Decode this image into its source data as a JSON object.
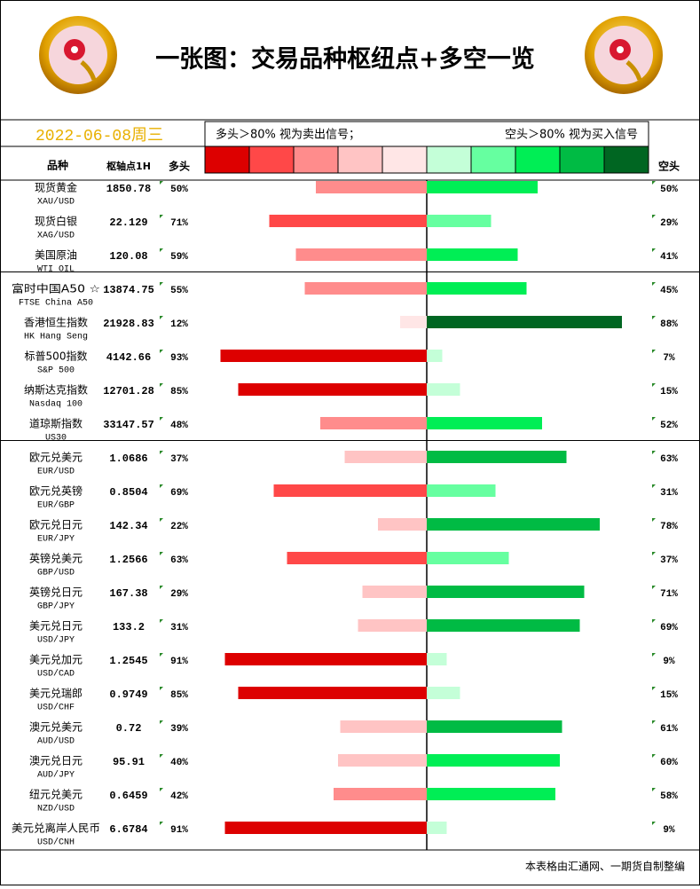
{
  "chart_data": {
    "type": "diverging-bar",
    "title": "一张图：交易品种枢纽点+多空一览",
    "date": "2022-06-08周三",
    "legend_left": "多头＞80% 视为卖出信号；",
    "legend_right": "空头＞80% 视为买入信号",
    "name_header": "品种",
    "pivot_header": "枢轴点1H",
    "footer": "本表格由汇通网、一期货自制整编",
    "xlim": [
      0,
      100
    ],
    "categories": [
      "现货黄金",
      "现货白银",
      "美国原油",
      "富时中国A50 ☆",
      "香港恒生指数",
      "标普500指数",
      "纳斯达克指数",
      "道琼斯指数",
      "欧元兑美元",
      "欧元兑英镑",
      "欧元兑日元",
      "英镑兑美元",
      "英镑兑日元",
      "美元兑日元",
      "美元兑加元",
      "美元兑瑞郎",
      "澳元兑美元",
      "澳元兑日元",
      "纽元兑美元",
      "美元兑离岸人民币"
    ],
    "codes": [
      "XAU/USD",
      "XAG/USD",
      "WTI OIL",
      "FTSE China A50",
      "HK Hang Seng",
      "S&P 500",
      "Nasdaq 100",
      "US30",
      "EUR/USD",
      "EUR/GBP",
      "EUR/JPY",
      "GBP/USD",
      "GBP/JPY",
      "USD/JPY",
      "USD/CAD",
      "USD/CHF",
      "AUD/USD",
      "AUD/JPY",
      "NZD/USD",
      "USD/CNH"
    ],
    "pivots": [
      1850.78,
      22.129,
      120.08,
      13874.75,
      21928.83,
      4142.66,
      12701.28,
      33147.57,
      1.0686,
      0.8504,
      142.34,
      1.2566,
      167.38,
      133.2,
      1.2545,
      0.9749,
      0.72,
      95.91,
      0.6459,
      6.6784
    ],
    "series": [
      {
        "name": "多头",
        "colors": [
          "#dd0000",
          "#ff4848",
          "#ff8c8c",
          "#ffc4c4",
          "#ffe6e6"
        ],
        "values": [
          50,
          71,
          59,
          55,
          12,
          93,
          85,
          48,
          37,
          69,
          22,
          63,
          29,
          31,
          91,
          85,
          39,
          40,
          42,
          91
        ],
        "value_labels": [
          "50%",
          "71%",
          "59%",
          "55%",
          "12%",
          "93%",
          "85%",
          "48%",
          "37%",
          "69%",
          "22%",
          "63%",
          "29%",
          "31%",
          "91%",
          "85%",
          "39%",
          "40%",
          "42%",
          "91%"
        ]
      },
      {
        "name": "空头",
        "colors": [
          "#006622",
          "#00bb44",
          "#00ee55",
          "#66ffa0",
          "#c4ffd8"
        ],
        "values": [
          50,
          29,
          41,
          45,
          88,
          7,
          15,
          52,
          63,
          31,
          78,
          37,
          71,
          69,
          9,
          15,
          61,
          60,
          58,
          9
        ],
        "value_labels": [
          "50%",
          "29%",
          "41%",
          "45%",
          "88%",
          "7%",
          "15%",
          "52%",
          "63%",
          "31%",
          "78%",
          "37%",
          "71%",
          "69%",
          "9%",
          "15%",
          "61%",
          "60%",
          "58%",
          "9%"
        ]
      }
    ]
  }
}
